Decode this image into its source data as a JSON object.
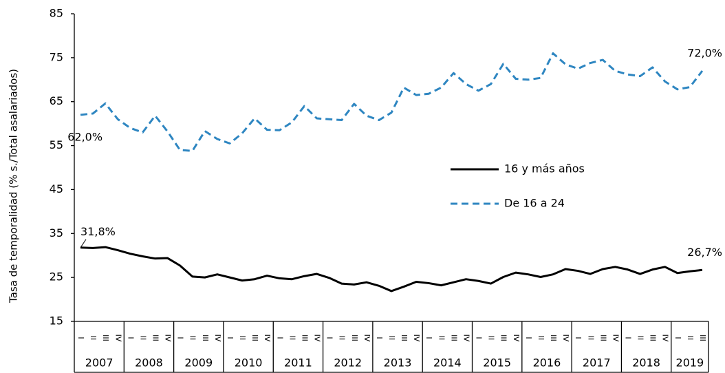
{
  "chart_data": {
    "type": "line",
    "y_axis_label": "Tasa de temporalidad (% s./Total asalariados)",
    "categories": [
      "I",
      "II",
      "III",
      "IV",
      "I",
      "II",
      "III",
      "IV",
      "I",
      "II",
      "III",
      "IV",
      "I",
      "II",
      "III",
      "IV",
      "I",
      "II",
      "III",
      "IV",
      "I",
      "II",
      "III",
      "IV",
      "I",
      "II",
      "III",
      "IV",
      "I",
      "II",
      "III",
      "IV",
      "I",
      "II",
      "III",
      "IV",
      "I",
      "II",
      "III",
      "IV",
      "I",
      "II",
      "III",
      "IV",
      "I",
      "II",
      "III",
      "IV",
      "I",
      "II",
      "III"
    ],
    "years": [
      "2007",
      "2008",
      "2009",
      "2010",
      "2011",
      "2012",
      "2013",
      "2014",
      "2015",
      "2016",
      "2017",
      "2018",
      "2019"
    ],
    "ylim": [
      15,
      85
    ],
    "yticks": [
      15,
      25,
      35,
      45,
      55,
      65,
      75,
      85
    ],
    "series": [
      {
        "name": "16 y más años",
        "color": "#000000",
        "dash": false,
        "values": [
          31.8,
          31.7,
          31.9,
          31.2,
          30.4,
          29.8,
          29.3,
          29.4,
          27.7,
          25.2,
          25.0,
          25.7,
          25.0,
          24.3,
          24.6,
          25.4,
          24.8,
          24.6,
          25.3,
          25.8,
          24.9,
          23.6,
          23.4,
          23.9,
          23.1,
          21.9,
          22.9,
          24.0,
          23.7,
          23.2,
          23.9,
          24.6,
          24.2,
          23.6,
          25.1,
          26.1,
          25.7,
          25.1,
          25.7,
          26.9,
          26.5,
          25.8,
          26.9,
          27.4,
          26.8,
          25.8,
          26.8,
          27.4,
          26.0,
          26.4,
          26.7
        ],
        "value_labels": [
          "31,8%",
          null,
          null,
          null,
          null,
          null,
          null,
          null,
          null,
          null,
          null,
          null,
          null,
          null,
          null,
          null,
          null,
          null,
          null,
          null,
          null,
          null,
          null,
          null,
          null,
          null,
          null,
          null,
          null,
          null,
          null,
          null,
          null,
          null,
          null,
          null,
          null,
          null,
          null,
          null,
          null,
          null,
          null,
          null,
          null,
          null,
          null,
          null,
          null,
          null,
          "26,7%"
        ]
      },
      {
        "name": "De 16 a 24",
        "color": "#2e86c1",
        "dash": true,
        "values": [
          62.0,
          62.3,
          64.6,
          61.0,
          59.0,
          58.0,
          61.8,
          58.2,
          54.0,
          53.8,
          58.3,
          56.5,
          55.5,
          57.8,
          61.2,
          58.6,
          58.5,
          60.3,
          64.0,
          61.2,
          61.0,
          60.8,
          64.5,
          61.8,
          60.8,
          62.5,
          68.2,
          66.5,
          66.8,
          68.2,
          71.5,
          69.0,
          67.5,
          69.0,
          73.6,
          70.2,
          70.0,
          70.4,
          76.0,
          73.5,
          72.5,
          73.8,
          74.5,
          72.0,
          71.2,
          70.8,
          72.8,
          69.6,
          67.8,
          68.3,
          72.0
        ],
        "value_labels": [
          "62,0%",
          null,
          null,
          null,
          null,
          null,
          null,
          null,
          null,
          null,
          null,
          null,
          null,
          null,
          null,
          null,
          null,
          null,
          null,
          null,
          null,
          null,
          null,
          null,
          null,
          null,
          null,
          null,
          null,
          null,
          null,
          null,
          null,
          null,
          null,
          null,
          null,
          null,
          null,
          null,
          null,
          null,
          null,
          null,
          null,
          null,
          null,
          null,
          null,
          null,
          "72,0%"
        ]
      }
    ]
  }
}
